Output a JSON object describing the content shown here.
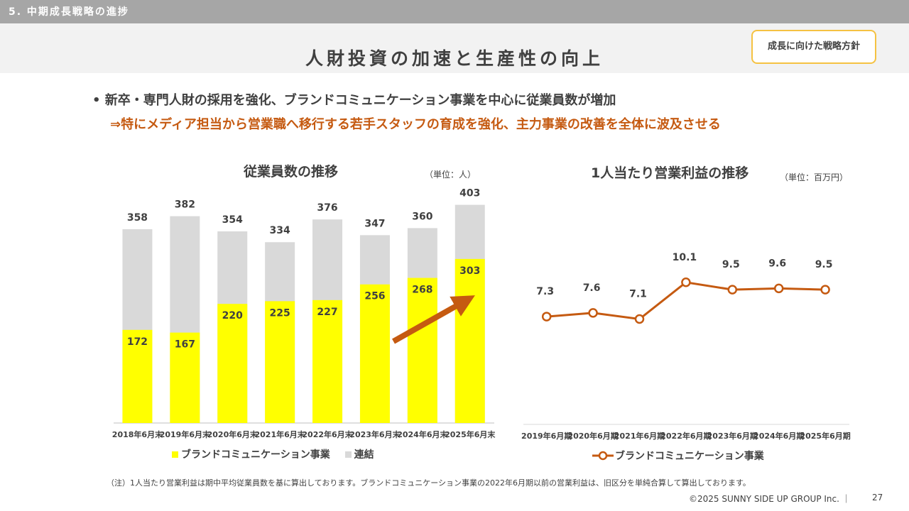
{
  "section": {
    "label": "5. 中期成長戦略の進捗"
  },
  "header": {
    "title": "人財投資の加速と生産性の向上",
    "badge": "成長に向けた戦略方針"
  },
  "bullets": {
    "main": "• 新卒・専門人財の採用を強化、ブランドコミュニケーション事業を中心に従業員数が増加",
    "sub": "⇒特にメディア担当から営業職へ移行する若手スタッフの育成を強化、主力事業の改善を全体に波及させる"
  },
  "colors": {
    "yellow": "#ffff00",
    "gray": "#d9d9d9",
    "orange": "#c55a11",
    "arrow": "#c55a11"
  },
  "chart_data": [
    {
      "type": "bar",
      "title": "従業員数の推移",
      "unit": "（単位：人）",
      "categories": [
        "2018年6月末",
        "2019年6月末",
        "2020年6月末",
        "2021年6月末",
        "2022年6月末",
        "2023年6月末",
        "2024年6月末",
        "2025年6月末"
      ],
      "series": [
        {
          "name": "ブランドコミュニケーション事業",
          "values": [
            172,
            167,
            220,
            225,
            227,
            256,
            268,
            303
          ]
        },
        {
          "name": "連結",
          "values": [
            358,
            382,
            354,
            334,
            376,
            347,
            360,
            403
          ]
        }
      ],
      "stacked_overlay": true,
      "ylim": [
        0,
        430
      ],
      "legend": "bottom"
    },
    {
      "type": "line",
      "title": "1人当たり営業利益の推移",
      "unit": "（単位：百万円）",
      "categories": [
        "2019年6月期",
        "2020年6月期",
        "2021年6月期",
        "2022年6月期",
        "2023年6月期",
        "2024年6月期",
        "2025年6月期"
      ],
      "series": [
        {
          "name": "ブランドコミュニケーション事業",
          "values": [
            7.3,
            7.6,
            7.1,
            10.1,
            9.5,
            9.6,
            9.5
          ]
        }
      ],
      "labels": [
        "7.3",
        "7.6",
        "7.1",
        "10.1",
        "9.5",
        "9.6",
        "9.5"
      ],
      "ylim": [
        0,
        16
      ],
      "legend": "bottom"
    }
  ],
  "footer": {
    "note": "（注）1人当たり営業利益は期中平均従業員数を基に算出しております。ブランドコミュニケーション事業の2022年6月期以前の営業利益は、旧区分を単純合算して算出しております。",
    "copyright": "©2025 SUNNY SIDE UP GROUP Inc. ｜",
    "page": "27"
  }
}
